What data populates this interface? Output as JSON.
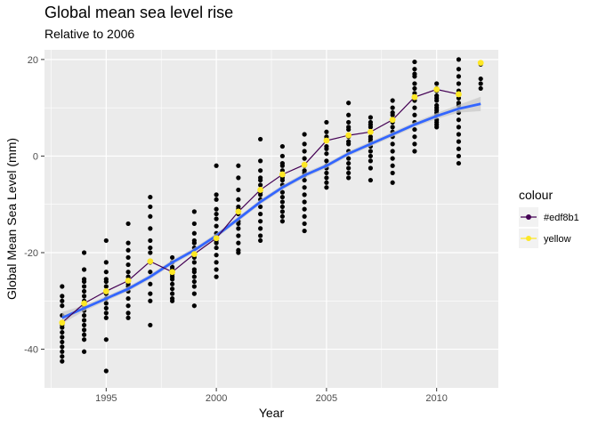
{
  "chart_data": {
    "type": "scatter",
    "title": "Global mean sea level rise",
    "subtitle": "Relative to 2006",
    "xlabel": "Year",
    "ylabel": "Global Mean Sea Level (mm)",
    "xlim": [
      1992.2,
      2012.8
    ],
    "ylim": [
      -48,
      22
    ],
    "x_ticks": [
      1995,
      2000,
      2005,
      2010
    ],
    "y_ticks": [
      -40,
      -20,
      0,
      20
    ],
    "grid": true,
    "legend": {
      "title": "colour",
      "position": "right",
      "entries": [
        {
          "label": "#edf8b1",
          "color": "#440154"
        },
        {
          "label": "yellow",
          "color": "#FDE725"
        }
      ]
    },
    "colors": {
      "points": "#000000",
      "annual_line": "#440154",
      "annual_points": "#FDE725",
      "smooth": "#3366FF",
      "ribbon": "#C8C8C8",
      "panel": "#EBEBEB",
      "grid": "#FFFFFF"
    },
    "series": [
      {
        "name": "#edf8b1",
        "kind": "annual mean line",
        "x": [
          1993,
          1994,
          1995,
          1996,
          1997,
          1998,
          1999,
          2000,
          2001,
          2002,
          2003,
          2004,
          2005,
          2006,
          2007,
          2008,
          2009,
          2010,
          2011
        ],
        "y": [
          -34.5,
          -30.5,
          -28,
          -25.8,
          -21.8,
          -24,
          -20.3,
          -17,
          -11.5,
          -7,
          -3.8,
          -1.8,
          3.2,
          4.3,
          5,
          7.5,
          12.2,
          13.8,
          12.8
        ]
      },
      {
        "name": "yellow",
        "kind": "annual mean points",
        "x": [
          1993,
          1994,
          1995,
          1996,
          1997,
          1998,
          1999,
          2000,
          2001,
          2002,
          2003,
          2004,
          2005,
          2006,
          2007,
          2008,
          2009,
          2010,
          2011,
          2012
        ],
        "y": [
          -34.5,
          -30.5,
          -28,
          -25.8,
          -21.8,
          -24,
          -20.3,
          -17,
          -11.5,
          -7,
          -3.8,
          -1.8,
          3.2,
          4.3,
          5,
          7.5,
          12.2,
          13.8,
          12.8,
          19.3
        ]
      }
    ],
    "smooth": {
      "x": [
        1993,
        1994,
        1995,
        1996,
        1997,
        1998,
        1999,
        2000,
        2001,
        2002,
        2003,
        2004,
        2005,
        2006,
        2007,
        2008,
        2009,
        2010,
        2011,
        2012
      ],
      "y": [
        -33.5,
        -31.5,
        -29.5,
        -27.5,
        -25,
        -22,
        -19.5,
        -16.5,
        -13,
        -9.5,
        -6.5,
        -4,
        -2,
        0.5,
        2.5,
        4.5,
        6.5,
        8.3,
        9.8,
        10.8
      ],
      "se": [
        1.2,
        0.6,
        0.5,
        0.5,
        0.5,
        0.5,
        0.5,
        0.5,
        0.5,
        0.5,
        0.5,
        0.5,
        0.5,
        0.5,
        0.5,
        0.5,
        0.5,
        0.6,
        0.8,
        1.5
      ]
    },
    "points": {
      "x": [
        1993,
        1993,
        1993,
        1993,
        1993,
        1993,
        1993,
        1993,
        1993,
        1993,
        1993,
        1993,
        1993,
        1993,
        1993,
        1994,
        1994,
        1994,
        1994,
        1994,
        1994,
        1994,
        1994,
        1994,
        1994,
        1994,
        1994,
        1994,
        1994,
        1994,
        1994,
        1994,
        1994,
        1995,
        1995,
        1995,
        1995,
        1995,
        1995,
        1995,
        1995,
        1995,
        1995,
        1995,
        1995,
        1995,
        1995,
        1996,
        1996,
        1996,
        1996,
        1996,
        1996,
        1996,
        1996,
        1996,
        1996,
        1996,
        1996,
        1996,
        1996,
        1997,
        1997,
        1997,
        1997,
        1997,
        1997,
        1997,
        1997,
        1997,
        1997,
        1997,
        1997,
        1997,
        1998,
        1998,
        1998,
        1998,
        1998,
        1998,
        1998,
        1998,
        1998,
        1998,
        1998,
        1998,
        1999,
        1999,
        1999,
        1999,
        1999,
        1999,
        1999,
        1999,
        1999,
        1999,
        1999,
        1999,
        1999,
        1999,
        1999,
        1999,
        2000,
        2000,
        2000,
        2000,
        2000,
        2000,
        2000,
        2000,
        2000,
        2000,
        2000,
        2000,
        2000,
        2000,
        2000,
        2001,
        2001,
        2001,
        2001,
        2001,
        2001,
        2001,
        2001,
        2001,
        2001,
        2001,
        2001,
        2001,
        2001,
        2002,
        2002,
        2002,
        2002,
        2002,
        2002,
        2002,
        2002,
        2002,
        2002,
        2002,
        2002,
        2002,
        2002,
        2002,
        2003,
        2003,
        2003,
        2003,
        2003,
        2003,
        2003,
        2003,
        2003,
        2003,
        2003,
        2003,
        2003,
        2003,
        2003,
        2004,
        2004,
        2004,
        2004,
        2004,
        2004,
        2004,
        2004,
        2004,
        2004,
        2004,
        2004,
        2004,
        2004,
        2004,
        2004,
        2005,
        2005,
        2005,
        2005,
        2005,
        2005,
        2005,
        2005,
        2005,
        2005,
        2005,
        2005,
        2005,
        2005,
        2006,
        2006,
        2006,
        2006,
        2006,
        2006,
        2006,
        2006,
        2006,
        2006,
        2006,
        2006,
        2006,
        2006,
        2007,
        2007,
        2007,
        2007,
        2007,
        2007,
        2007,
        2007,
        2007,
        2007,
        2007,
        2007,
        2007,
        2007,
        2008,
        2008,
        2008,
        2008,
        2008,
        2008,
        2008,
        2008,
        2008,
        2008,
        2008,
        2008,
        2008,
        2008,
        2009,
        2009,
        2009,
        2009,
        2009,
        2009,
        2009,
        2009,
        2009,
        2009,
        2009,
        2009,
        2009,
        2009,
        2009,
        2009,
        2010,
        2010,
        2010,
        2010,
        2010,
        2010,
        2010,
        2010,
        2010,
        2010,
        2010,
        2010,
        2010,
        2010,
        2010,
        2011,
        2011,
        2011,
        2011,
        2011,
        2011,
        2011,
        2011,
        2011,
        2011,
        2011,
        2011,
        2011,
        2011,
        2011,
        2011,
        2012,
        2012,
        2012,
        2012
      ],
      "y": [
        -27,
        -29,
        -31,
        -33,
        -34.5,
        -35.5,
        -36.5,
        -37.5,
        -38.5,
        -39.5,
        -40.5,
        -41.5,
        -42.5,
        -35,
        -30,
        -20,
        -23.5,
        -25.5,
        -27,
        -28,
        -29,
        -30,
        -31,
        -32,
        -33,
        -34,
        -35,
        -36,
        -37,
        -38,
        -40.5,
        -26,
        -31.5,
        -17.5,
        -22,
        -24,
        -25.5,
        -27,
        -28.5,
        -29.5,
        -30.5,
        -31.5,
        -32.5,
        -33.5,
        -38,
        -44.5,
        -26,
        -14,
        -18,
        -19.5,
        -21,
        -22.5,
        -24,
        -25,
        -26.5,
        -28,
        -29.5,
        -31,
        -32.5,
        -33.5,
        -27,
        -8.5,
        -10.5,
        -12.5,
        -15,
        -17.5,
        -20,
        -22,
        -24,
        -26.5,
        -28.5,
        -30,
        -35,
        -19,
        -21,
        -22,
        -23.5,
        -24.5,
        -25.5,
        -26.5,
        -27.5,
        -28.5,
        -29.5,
        -30,
        -23,
        -25,
        -11.5,
        -14,
        -16,
        -17.5,
        -19,
        -20.5,
        -22,
        -23.5,
        -25,
        -27,
        -28.5,
        -31,
        -18,
        -21,
        -24,
        -26,
        -2,
        -8,
        -9,
        -11,
        -13,
        -14.5,
        -16,
        -17.5,
        -19,
        -20.5,
        -22,
        -23.5,
        -25,
        -12,
        -18,
        -2,
        -4.5,
        -7,
        -9,
        -10.5,
        -12,
        -13.5,
        -15,
        -16.5,
        -18,
        -19.5,
        -20,
        -14,
        -11,
        3.5,
        -1,
        -3,
        -4.5,
        -6,
        -7.5,
        -9,
        -10.5,
        -12,
        -13.5,
        -15,
        -16.5,
        -17.5,
        -8,
        -5,
        2,
        0,
        -1.5,
        -3,
        -4.5,
        -6,
        -7.5,
        -8.5,
        -9.5,
        -10.5,
        -11.5,
        -12.5,
        -13.5,
        -2,
        -5,
        4.5,
        2.5,
        1,
        -0.5,
        -2,
        -3.5,
        -5,
        -6.5,
        -8,
        -9.5,
        -11,
        -12.5,
        -14,
        -15.5,
        -4,
        -3,
        7,
        5,
        3.5,
        2,
        0.5,
        -1,
        -2.5,
        -3.5,
        -4.5,
        -5.5,
        -6.5,
        1.5,
        4,
        -2,
        11,
        8.5,
        7,
        5.5,
        4,
        2.5,
        1,
        -0.5,
        -1.5,
        -2.5,
        -3.5,
        -4.5,
        6,
        3,
        8,
        7,
        6,
        5,
        4,
        3,
        2,
        1,
        0,
        -1,
        -2.5,
        -5,
        6.5,
        3.5,
        11.5,
        10,
        8.5,
        7,
        6,
        5,
        4,
        2.5,
        1,
        -0.5,
        -2,
        -3.5,
        -5.5,
        9,
        19.5,
        18,
        16.5,
        15,
        14,
        13,
        11.5,
        10,
        8.5,
        7,
        5.5,
        4,
        2.5,
        1,
        17,
        12,
        15,
        13.5,
        12.5,
        11.5,
        10.5,
        9.5,
        8.5,
        7.5,
        6.5,
        6,
        12,
        9,
        14,
        10,
        7,
        20,
        18,
        16.5,
        15,
        13.5,
        12,
        10.5,
        9,
        7.5,
        6,
        4.5,
        3,
        1.5,
        0,
        -1.5,
        11,
        16,
        15,
        14,
        19
      ]
    }
  }
}
